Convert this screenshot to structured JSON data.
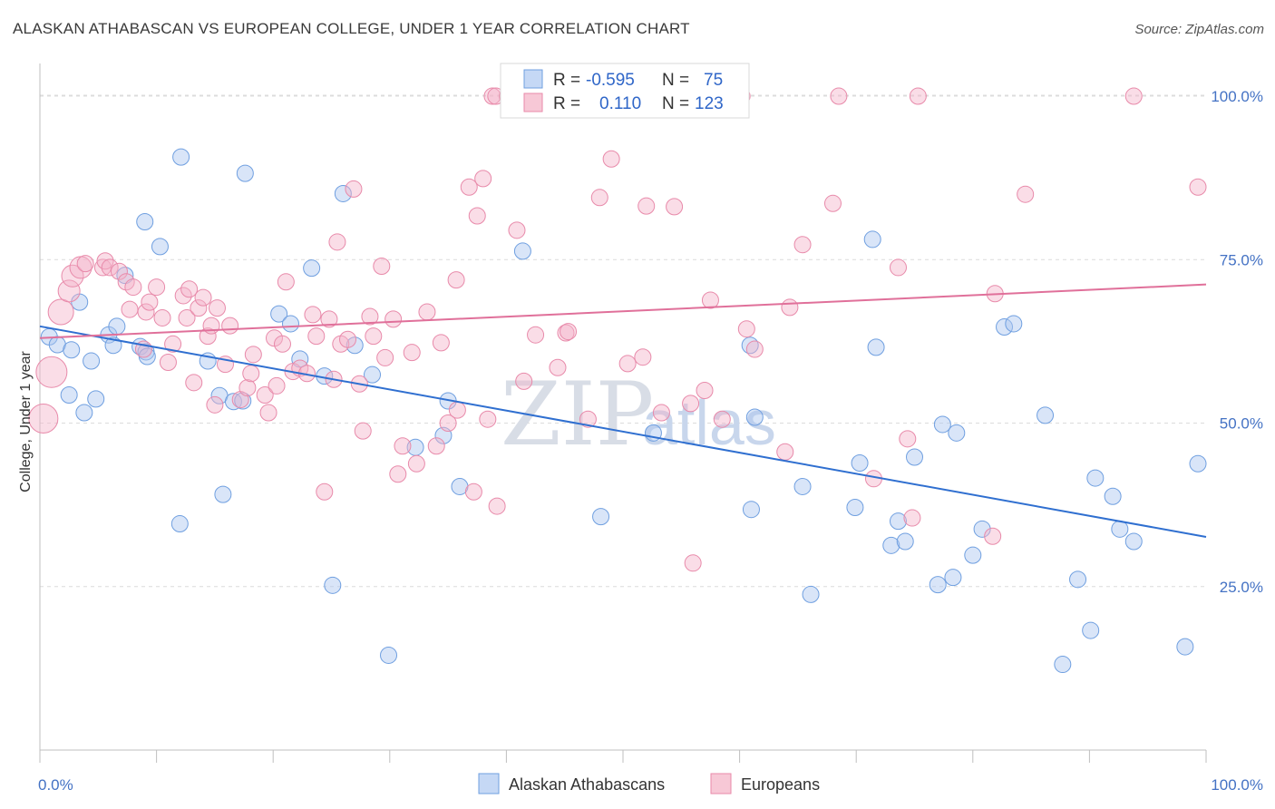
{
  "title": "ALASKAN ATHABASCAN VS EUROPEAN COLLEGE, UNDER 1 YEAR CORRELATION CHART",
  "source": "Source: ZipAtlas.com",
  "watermark": {
    "zip": "ZIP",
    "atlas": "atlas"
  },
  "legend": {
    "r_label": "R =",
    "n_label": "N =",
    "rows": [
      {
        "r": "-0.595",
        "n": "75",
        "color": "#6f9fe0"
      },
      {
        "r": "0.110",
        "n": "123",
        "color": "#e88aaa"
      }
    ]
  },
  "bottom_legend": [
    "Alaskan Athabascans",
    "Europeans"
  ],
  "chart_data": {
    "type": "scatter",
    "title": "ALASKAN ATHABASCAN VS EUROPEAN COLLEGE, UNDER 1 YEAR CORRELATION CHART",
    "xlabel": "",
    "ylabel": "College, Under 1 year",
    "xlim": [
      0,
      100
    ],
    "ylim": [
      0,
      105
    ],
    "x_tick_labels": [
      "0.0%",
      "100.0%"
    ],
    "y_tick_labels": [
      "25.0%",
      "50.0%",
      "75.0%",
      "100.0%"
    ],
    "y_ticks": [
      25,
      50,
      75,
      100
    ],
    "grid": true,
    "legend_position": "top-center",
    "series": [
      {
        "name": "Alaskan Athabascans",
        "color": "#6f9fe0",
        "trend": [
          [
            0,
            64.8
          ],
          [
            100,
            32.6
          ]
        ],
        "points": [
          [
            0.8,
            63.2
          ],
          [
            1.5,
            62
          ],
          [
            2.7,
            61.2
          ],
          [
            3.4,
            68.5
          ],
          [
            3.8,
            51.6
          ],
          [
            2.5,
            54.3
          ],
          [
            4.4,
            59.5
          ],
          [
            4.8,
            53.7
          ],
          [
            5.9,
            63.5
          ],
          [
            6.3,
            61.9
          ],
          [
            6.6,
            64.8
          ],
          [
            7.3,
            72.6
          ],
          [
            8.6,
            61.7
          ],
          [
            9.0,
            80.8
          ],
          [
            9.1,
            60.9
          ],
          [
            9.2,
            60.2
          ],
          [
            10.3,
            77
          ],
          [
            12.1,
            90.7
          ],
          [
            12.0,
            34.6
          ],
          [
            14.4,
            59.5
          ],
          [
            15.4,
            54.2
          ],
          [
            15.7,
            39.1
          ],
          [
            16.6,
            53.3
          ],
          [
            17.4,
            53.4
          ],
          [
            17.6,
            88.2
          ],
          [
            20.5,
            66.7
          ],
          [
            21.5,
            65.2
          ],
          [
            22.3,
            59.8
          ],
          [
            23.3,
            73.7
          ],
          [
            24.4,
            57.2
          ],
          [
            25.1,
            25.2
          ],
          [
            26.0,
            85.1
          ],
          [
            27.0,
            61.9
          ],
          [
            28.5,
            57.4
          ],
          [
            29.9,
            14.5
          ],
          [
            32.2,
            46.3
          ],
          [
            35.0,
            53.4
          ],
          [
            34.6,
            48.1
          ],
          [
            36.0,
            40.3
          ],
          [
            41.4,
            76.3
          ],
          [
            48.1,
            35.7
          ],
          [
            52.6,
            48.5
          ],
          [
            60.9,
            61.9
          ],
          [
            61.0,
            36.8
          ],
          [
            61.3,
            50.9
          ],
          [
            65.4,
            40.3
          ],
          [
            66.1,
            23.8
          ],
          [
            69.9,
            37.1
          ],
          [
            70.3,
            43.9
          ],
          [
            71.4,
            78.1
          ],
          [
            71.7,
            61.6
          ],
          [
            73.0,
            31.3
          ],
          [
            73.6,
            35
          ],
          [
            74.2,
            31.9
          ],
          [
            75.0,
            44.8
          ],
          [
            77.0,
            25.3
          ],
          [
            77.4,
            49.8
          ],
          [
            78.3,
            26.4
          ],
          [
            78.6,
            48.5
          ],
          [
            80.0,
            29.8
          ],
          [
            80.8,
            33.8
          ],
          [
            82.7,
            64.7
          ],
          [
            83.5,
            65.2
          ],
          [
            86.2,
            51.2
          ],
          [
            87.7,
            13.1
          ],
          [
            89.0,
            26.1
          ],
          [
            90.1,
            18.3
          ],
          [
            90.5,
            41.6
          ],
          [
            92.0,
            38.8
          ],
          [
            92.6,
            33.8
          ],
          [
            93.8,
            31.9
          ],
          [
            98.2,
            15.8
          ],
          [
            99.3,
            43.8
          ]
        ]
      },
      {
        "name": "Europeans",
        "color": "#e88aaa",
        "trend": [
          [
            0,
            63
          ],
          [
            100,
            71.2
          ]
        ],
        "points": [
          [
            0.3,
            50.7
          ],
          [
            1.0,
            57.8
          ],
          [
            1.8,
            67
          ],
          [
            2.5,
            70.2
          ],
          [
            2.8,
            72.5
          ],
          [
            3.5,
            73.8
          ],
          [
            3.9,
            74.4
          ],
          [
            5.4,
            73.8
          ],
          [
            5.6,
            74.8
          ],
          [
            6.0,
            73.8
          ],
          [
            6.8,
            73.2
          ],
          [
            7.4,
            71.6
          ],
          [
            7.7,
            67.4
          ],
          [
            8.0,
            70.8
          ],
          [
            8.9,
            61.3
          ],
          [
            9.1,
            67.0
          ],
          [
            9.4,
            68.5
          ],
          [
            10.0,
            70.8
          ],
          [
            10.5,
            66.1
          ],
          [
            11.0,
            59.3
          ],
          [
            11.4,
            62.1
          ],
          [
            12.3,
            69.5
          ],
          [
            12.6,
            66.1
          ],
          [
            12.8,
            70.5
          ],
          [
            13.2,
            56.2
          ],
          [
            13.6,
            67.6
          ],
          [
            14.0,
            69.2
          ],
          [
            14.4,
            63.3
          ],
          [
            14.7,
            64.9
          ],
          [
            15.0,
            52.8
          ],
          [
            15.2,
            67.6
          ],
          [
            15.9,
            59.0
          ],
          [
            16.3,
            64.9
          ],
          [
            17.2,
            53.6
          ],
          [
            17.8,
            55.4
          ],
          [
            18.1,
            57.6
          ],
          [
            18.3,
            60.5
          ],
          [
            19.3,
            54.3
          ],
          [
            19.6,
            51.6
          ],
          [
            20.1,
            63
          ],
          [
            20.3,
            55.7
          ],
          [
            20.8,
            62.1
          ],
          [
            21.1,
            71.6
          ],
          [
            21.7,
            57.9
          ],
          [
            22.3,
            58.4
          ],
          [
            22.9,
            57.6
          ],
          [
            23.4,
            66.6
          ],
          [
            23.7,
            63.3
          ],
          [
            24.4,
            39.5
          ],
          [
            24.8,
            65.9
          ],
          [
            25.2,
            56.7
          ],
          [
            25.5,
            77.7
          ],
          [
            25.8,
            62.1
          ],
          [
            26.4,
            62.8
          ],
          [
            26.9,
            85.8
          ],
          [
            27.4,
            56.0
          ],
          [
            27.7,
            48.8
          ],
          [
            28.3,
            66.3
          ],
          [
            28.6,
            63.3
          ],
          [
            29.3,
            74.0
          ],
          [
            29.6,
            60
          ],
          [
            30.3,
            65.9
          ],
          [
            30.7,
            42.2
          ],
          [
            31.1,
            46.5
          ],
          [
            31.9,
            60.8
          ],
          [
            32.3,
            43.8
          ],
          [
            33.2,
            67
          ],
          [
            34.0,
            46.5
          ],
          [
            34.4,
            62.3
          ],
          [
            35.0,
            50.0
          ],
          [
            35.7,
            71.9
          ],
          [
            35.8,
            52.0
          ],
          [
            36.8,
            86.1
          ],
          [
            37.2,
            39.5
          ],
          [
            37.5,
            81.7
          ],
          [
            38.0,
            87.4
          ],
          [
            38.4,
            50.6
          ],
          [
            39.2,
            37.3
          ],
          [
            40.9,
            79.5
          ],
          [
            41.5,
            56.4
          ],
          [
            42.5,
            63.5
          ],
          [
            44.4,
            58.5
          ],
          [
            45.1,
            63.8
          ],
          [
            45.3,
            64
          ],
          [
            47.0,
            50.6
          ],
          [
            48.0,
            84.5
          ],
          [
            49.0,
            90.4
          ],
          [
            50.4,
            59.1
          ],
          [
            51.7,
            60.1
          ],
          [
            52.0,
            83.2
          ],
          [
            53.3,
            51.6
          ],
          [
            54.4,
            83.1
          ],
          [
            55.8,
            53.0
          ],
          [
            56.0,
            28.6
          ],
          [
            57.0,
            55.0
          ],
          [
            57.5,
            68.8
          ],
          [
            58.5,
            50.6
          ],
          [
            60.6,
            64.4
          ],
          [
            61.3,
            61.3
          ],
          [
            63.9,
            45.6
          ],
          [
            64.3,
            67.7
          ],
          [
            65.4,
            77.3
          ],
          [
            68.0,
            83.6
          ],
          [
            71.5,
            41.5
          ],
          [
            73.6,
            73.8
          ],
          [
            74.4,
            47.6
          ],
          [
            74.8,
            35.5
          ],
          [
            81.7,
            32.7
          ],
          [
            81.9,
            69.8
          ],
          [
            84.5,
            85.0
          ],
          [
            99.3,
            86.1
          ],
          [
            38.8,
            100
          ],
          [
            39.1,
            100
          ],
          [
            40.1,
            100
          ],
          [
            44.4,
            100
          ],
          [
            48.2,
            100
          ],
          [
            53.4,
            100
          ],
          [
            60.2,
            100
          ],
          [
            68.5,
            100
          ],
          [
            75.3,
            100
          ],
          [
            93.8,
            100
          ]
        ]
      }
    ]
  }
}
